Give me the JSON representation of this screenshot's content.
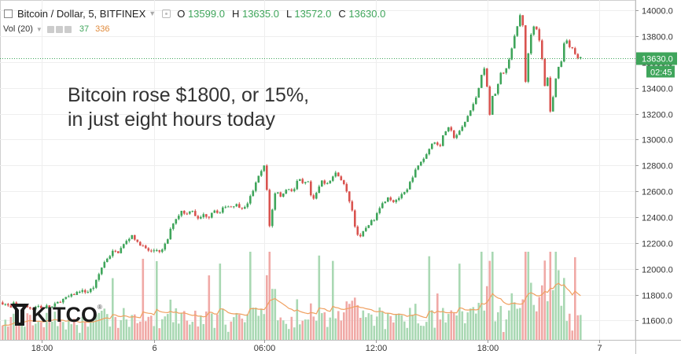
{
  "header": {
    "symbol": "Bitcoin / Dollar, 5, BITFINEX",
    "open_label": "O",
    "open": "13599.0",
    "high_label": "H",
    "high": "13635.0",
    "low_label": "L",
    "low": "13572.0",
    "close_label": "C",
    "close": "13630.0"
  },
  "volume": {
    "label": "Vol (20)",
    "value": "37",
    "ma": "336"
  },
  "annotation": {
    "line1": "Bitcoin rose $1800, or 15%,",
    "line2": "in just eight hours today"
  },
  "logo": {
    "text": "KITCO",
    "mark": "®"
  },
  "colors": {
    "up": "#3fa55b",
    "down": "#d9534f",
    "vol_up": "#a9d8b3",
    "vol_down": "#f0a9a6",
    "ma": "#f0a060",
    "last_price": "#3fa55b"
  },
  "chart_data": {
    "type": "candlestick",
    "interval": "5 min",
    "ylim": [
      11450,
      14080
    ],
    "y_ticks": [
      "14000.0",
      "13800.0",
      "13600.0",
      "13400.0",
      "13200.0",
      "13000.0",
      "12800.0",
      "12600.0",
      "12400.0",
      "12200.0",
      "12000.0",
      "11800.0",
      "11600.0"
    ],
    "x_ticks": [
      "18:00",
      "6",
      "06:00",
      "12:00",
      "18:00",
      "7"
    ],
    "last_price": {
      "value": "13630.0",
      "countdown": "02:45"
    },
    "price_path": [
      [
        0,
        11740
      ],
      [
        8,
        11720
      ],
      [
        12,
        11690
      ],
      [
        16,
        11730
      ],
      [
        22,
        11700
      ],
      [
        28,
        11720
      ],
      [
        34,
        11700
      ],
      [
        40,
        11690
      ],
      [
        46,
        11720
      ],
      [
        52,
        11690
      ],
      [
        58,
        11710
      ],
      [
        64,
        11700
      ],
      [
        70,
        11730
      ],
      [
        78,
        11760
      ],
      [
        85,
        11780
      ],
      [
        92,
        11800
      ],
      [
        100,
        11830
      ],
      [
        110,
        11820
      ],
      [
        118,
        11860
      ],
      [
        124,
        11950
      ],
      [
        128,
        12010
      ],
      [
        133,
        12070
      ],
      [
        138,
        12100
      ],
      [
        143,
        12140
      ],
      [
        148,
        12120
      ],
      [
        155,
        12180
      ],
      [
        162,
        12230
      ],
      [
        168,
        12270
      ],
      [
        172,
        12200
      ],
      [
        177,
        12190
      ],
      [
        183,
        12160
      ],
      [
        190,
        12130
      ],
      [
        197,
        12150
      ],
      [
        204,
        12130
      ],
      [
        212,
        12230
      ],
      [
        218,
        12350
      ],
      [
        224,
        12400
      ],
      [
        230,
        12450
      ],
      [
        236,
        12420
      ],
      [
        242,
        12470
      ],
      [
        250,
        12380
      ],
      [
        258,
        12420
      ],
      [
        264,
        12400
      ],
      [
        270,
        12460
      ],
      [
        278,
        12430
      ],
      [
        285,
        12490
      ],
      [
        292,
        12480
      ],
      [
        298,
        12500
      ],
      [
        304,
        12480
      ],
      [
        310,
        12470
      ],
      [
        316,
        12540
      ],
      [
        322,
        12630
      ],
      [
        328,
        12720
      ],
      [
        334,
        12790
      ],
      [
        337,
        12800
      ],
      [
        339,
        12420
      ],
      [
        342,
        12320
      ],
      [
        346,
        12500
      ],
      [
        350,
        12630
      ],
      [
        355,
        12550
      ],
      [
        360,
        12600
      ],
      [
        366,
        12620
      ],
      [
        372,
        12600
      ],
      [
        378,
        12700
      ],
      [
        384,
        12650
      ],
      [
        390,
        12680
      ],
      [
        396,
        12510
      ],
      [
        402,
        12600
      ],
      [
        408,
        12680
      ],
      [
        414,
        12660
      ],
      [
        420,
        12700
      ],
      [
        426,
        12740
      ],
      [
        430,
        12720
      ],
      [
        436,
        12650
      ],
      [
        442,
        12550
      ],
      [
        447,
        12440
      ],
      [
        451,
        12300
      ],
      [
        456,
        12230
      ],
      [
        462,
        12300
      ],
      [
        468,
        12350
      ],
      [
        474,
        12380
      ],
      [
        480,
        12470
      ],
      [
        486,
        12510
      ],
      [
        492,
        12560
      ],
      [
        498,
        12520
      ],
      [
        504,
        12540
      ],
      [
        510,
        12570
      ],
      [
        516,
        12600
      ],
      [
        522,
        12700
      ],
      [
        528,
        12770
      ],
      [
        534,
        12830
      ],
      [
        540,
        12870
      ],
      [
        546,
        12960
      ],
      [
        552,
        12980
      ],
      [
        558,
        12950
      ],
      [
        564,
        13060
      ],
      [
        570,
        13090
      ],
      [
        576,
        13020
      ],
      [
        582,
        13050
      ],
      [
        588,
        13110
      ],
      [
        594,
        13190
      ],
      [
        600,
        13260
      ],
      [
        606,
        13360
      ],
      [
        610,
        13490
      ],
      [
        614,
        13560
      ],
      [
        618,
        13420
      ],
      [
        621,
        13170
      ],
      [
        625,
        13330
      ],
      [
        630,
        13380
      ],
      [
        636,
        13520
      ],
      [
        642,
        13530
      ],
      [
        646,
        13630
      ],
      [
        650,
        13720
      ],
      [
        655,
        13840
      ],
      [
        660,
        13960
      ],
      [
        664,
        13880
      ],
      [
        667,
        13440
      ],
      [
        671,
        13700
      ],
      [
        675,
        13860
      ],
      [
        680,
        13890
      ],
      [
        684,
        13780
      ],
      [
        688,
        13620
      ],
      [
        692,
        13380
      ],
      [
        696,
        13520
      ],
      [
        699,
        13160
      ],
      [
        703,
        13380
      ],
      [
        707,
        13540
      ],
      [
        712,
        13590
      ],
      [
        716,
        13750
      ],
      [
        720,
        13780
      ],
      [
        724,
        13690
      ],
      [
        728,
        13710
      ],
      [
        732,
        13620
      ],
      [
        737,
        13630
      ]
    ]
  }
}
